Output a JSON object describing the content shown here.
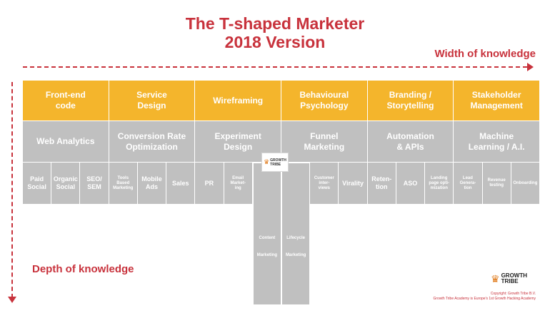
{
  "title": {
    "line1": "The T-shaped Marketer",
    "line2": "2018 Version"
  },
  "axes": {
    "width_label": "Width of knowledge",
    "depth_label": "Depth of knowledge"
  },
  "top_row": [
    "Front-end\ncode",
    "Service\nDesign",
    "Wireframing",
    "Behavioural\nPsychology",
    "Branding /\nStorytelling",
    "Stakeholder\nManagement"
  ],
  "mid_row": [
    "Web Analytics",
    "Conversion Rate\nOptimization",
    "Experiment\nDesign",
    "Funnel\nMarketing",
    "Automation\n& APIs",
    "Machine\nLearning / A.I."
  ],
  "skills": [
    "Paid\nSocial",
    "Organic\nSocial",
    "SEO/\nSEM",
    "Tools\nBased\nMarketing",
    "Mobile\nAds",
    "Sales",
    "PR",
    "Email\nMarket-\ning",
    "",
    "",
    "Customer\ninter-\nviews",
    "Virality",
    "Reten-\ntion",
    "ASO",
    "Landing\npage opti-\nmization",
    "Lead\nGenera-\ntion",
    "Revenue\ntesting",
    "Onboarding"
  ],
  "deep_columns": [
    "Content\nMarketing",
    "Lifecycle\nMarketing"
  ],
  "badge": {
    "text": "GROWTH\nTRIBE",
    "icon": "lion-head-icon"
  },
  "logo": {
    "text": "GROWTH\nTRIBE",
    "icon": "lion-head-icon"
  },
  "copyright": {
    "line1": "Copyright: Growth Tribe B.V.",
    "line2": "Growth Tribe Academy is Europe's 1st Growth Hacking Academy"
  },
  "colors": {
    "accent": "#c8323c",
    "orange": "#f4b52c",
    "gray": "#c0c0c0"
  }
}
